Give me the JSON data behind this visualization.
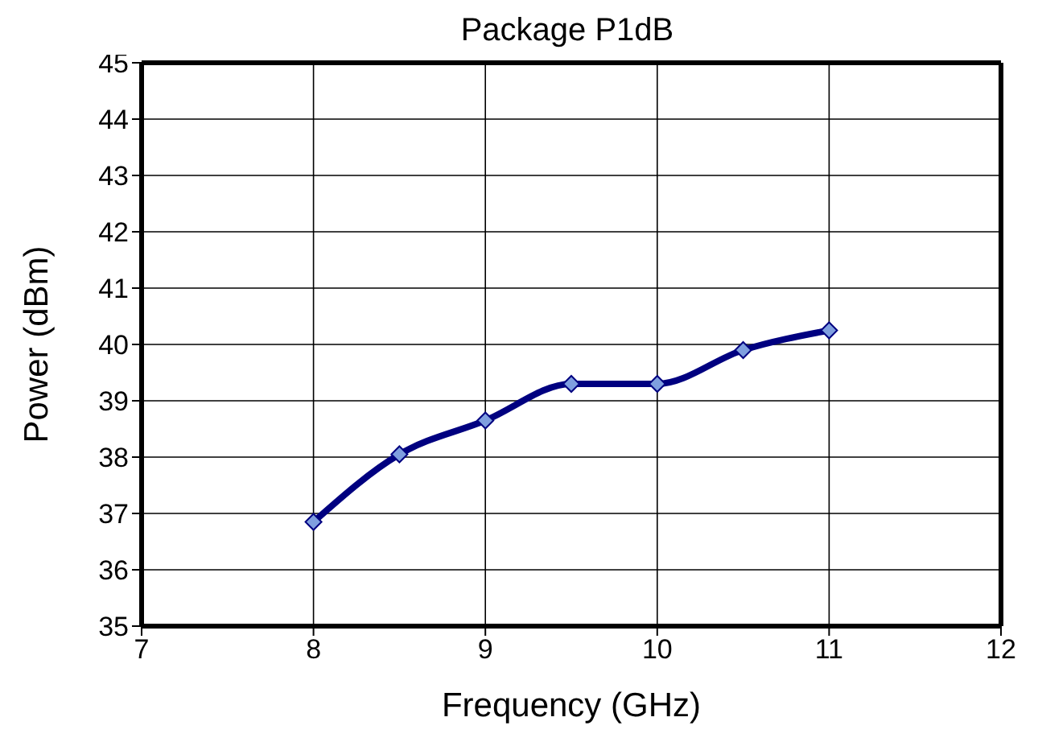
{
  "chart_data": {
    "type": "line",
    "title": "Package P1dB",
    "xlabel": "Frequency (GHz)",
    "ylabel": "Power (dBm)",
    "x": [
      8,
      8.5,
      9,
      9.5,
      10,
      10.5,
      11
    ],
    "series": [
      {
        "color": "#000080",
        "values": [
          36.85,
          38.05,
          38.65,
          39.3,
          39.3,
          39.9,
          40.25
        ]
      }
    ],
    "xlim": [
      7,
      12
    ],
    "xticks": [
      7,
      8,
      9,
      10,
      11,
      12
    ],
    "ylim": [
      35,
      45
    ],
    "yticks": [
      35,
      36,
      37,
      38,
      39,
      40,
      41,
      42,
      43,
      44,
      45
    ],
    "grid": true,
    "marker": "diamond",
    "line_style": "solid"
  }
}
